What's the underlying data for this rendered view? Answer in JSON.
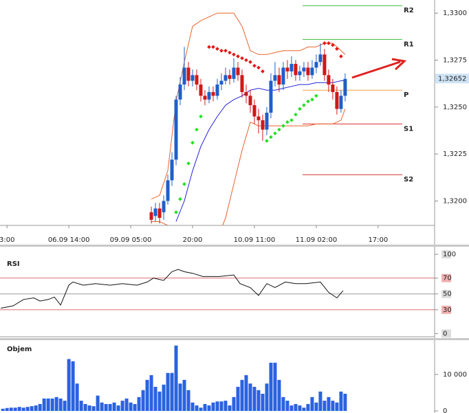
{
  "chart_data": [
    {
      "type": "candlestick",
      "x": [
        35,
        36,
        37,
        38,
        39,
        40,
        41,
        42,
        43,
        44,
        45,
        46,
        47,
        48,
        49,
        50,
        51,
        52,
        53,
        54,
        55,
        56,
        57,
        58,
        59,
        60,
        61,
        62,
        63,
        64,
        65,
        66,
        67,
        68,
        69,
        70,
        71,
        72,
        73,
        74,
        75,
        76,
        77,
        78,
        79,
        80,
        81,
        82
      ],
      "open": [
        1.3194,
        1.3192,
        1.3196,
        1.3194,
        1.32,
        1.3211,
        1.3222,
        1.3254,
        1.3262,
        1.3271,
        1.3264,
        1.3267,
        1.3262,
        1.3256,
        1.3254,
        1.3258,
        1.3256,
        1.3262,
        1.3264,
        1.3267,
        1.3265,
        1.3271,
        1.3267,
        1.3258,
        1.3256,
        1.3251,
        1.3245,
        1.3243,
        1.3238,
        1.3247,
        1.3264,
        1.3267,
        1.3262,
        1.3271,
        1.3269,
        1.3273,
        1.3267,
        1.3269,
        1.3271,
        1.3267,
        1.3271,
        1.3274,
        1.3278,
        1.3267,
        1.3262,
        1.3258,
        1.3249,
        1.3256
      ],
      "high": [
        1.3197,
        1.3199,
        1.3199,
        1.3203,
        1.3214,
        1.3226,
        1.3256,
        1.3266,
        1.3282,
        1.3274,
        1.327,
        1.327,
        1.3265,
        1.3259,
        1.3261,
        1.3261,
        1.3265,
        1.3268,
        1.3271,
        1.327,
        1.3276,
        1.3274,
        1.327,
        1.3262,
        1.3259,
        1.3254,
        1.3249,
        1.3246,
        1.325,
        1.3268,
        1.3274,
        1.3271,
        1.3274,
        1.3275,
        1.3277,
        1.3275,
        1.3272,
        1.3274,
        1.3274,
        1.3275,
        1.3278,
        1.3284,
        1.3281,
        1.327,
        1.3265,
        1.3261,
        1.3259,
        1.3268
      ],
      "low": [
        1.3188,
        1.3189,
        1.3188,
        1.319,
        1.3198,
        1.3208,
        1.3219,
        1.3251,
        1.3259,
        1.3261,
        1.3261,
        1.3259,
        1.3253,
        1.3251,
        1.3252,
        1.3253,
        1.3254,
        1.3259,
        1.3262,
        1.3262,
        1.3263,
        1.3264,
        1.3255,
        1.3252,
        1.3247,
        1.3241,
        1.3236,
        1.3232,
        1.3235,
        1.3244,
        1.3261,
        1.3258,
        1.3259,
        1.3265,
        1.3266,
        1.3264,
        1.3264,
        1.3266,
        1.3264,
        1.3265,
        1.3268,
        1.3272,
        1.3264,
        1.3258,
        1.3254,
        1.3246,
        1.3247,
        1.3253
      ],
      "close": [
        1.319,
        1.3196,
        1.3191,
        1.32,
        1.3211,
        1.3222,
        1.3254,
        1.3262,
        1.3271,
        1.3264,
        1.3267,
        1.3262,
        1.3256,
        1.3254,
        1.3258,
        1.3256,
        1.3262,
        1.3264,
        1.3267,
        1.3265,
        1.3271,
        1.3267,
        1.3258,
        1.3256,
        1.3251,
        1.3245,
        1.3243,
        1.3238,
        1.3247,
        1.3264,
        1.3267,
        1.3262,
        1.3271,
        1.3269,
        1.3273,
        1.3267,
        1.3269,
        1.3271,
        1.3267,
        1.3271,
        1.3274,
        1.3278,
        1.3267,
        1.3262,
        1.3258,
        1.3249,
        1.3256,
        1.3265
      ],
      "up_color": "#1f5fc8",
      "down_color": "#d01818",
      "xlim": [
        -1.7,
        103.7
      ],
      "ylim": [
        1.3187,
        1.3307
      ],
      "xticks": [
        {
          "value": 0,
          "label": "3:00"
        },
        {
          "value": 15,
          "label": "06.09 14:00"
        },
        {
          "value": 30,
          "label": "09.09 05:00"
        },
        {
          "value": 45,
          "label": "20:00"
        },
        {
          "value": 60,
          "label": "10.09 11:00"
        },
        {
          "value": 75,
          "label": "11.09 02:00"
        },
        {
          "value": 90,
          "label": "17:00"
        }
      ],
      "yticks": [
        {
          "value": 1.32,
          "label": "1,3200"
        },
        {
          "value": 1.3225,
          "label": "1,3225"
        },
        {
          "value": 1.325,
          "label": "1,3250"
        },
        {
          "value": 1.3275,
          "label": "1,3275"
        },
        {
          "value": 1.33,
          "label": "1,3300"
        }
      ],
      "bands": {
        "color": "#e8622a",
        "x": [
          35,
          37,
          39,
          41,
          43,
          45,
          47,
          49,
          51,
          53,
          55,
          57,
          59,
          61,
          63,
          65,
          67,
          69,
          71,
          73,
          75,
          77,
          79,
          81,
          82
        ],
        "upper": [
          1.3201,
          1.3203,
          1.3216,
          1.3253,
          1.3274,
          1.3293,
          1.3296,
          1.3298,
          1.33,
          1.33,
          1.33,
          1.3293,
          1.328,
          1.3278,
          1.3278,
          1.3279,
          1.328,
          1.328,
          1.328,
          1.3282,
          1.3282,
          1.3284,
          1.3284,
          1.328,
          1.3278
        ],
        "lower": [
          1.3189,
          1.3189,
          1.3187,
          1.3183,
          1.3181,
          1.318,
          1.3178,
          1.3176,
          1.318,
          1.3191,
          1.3209,
          1.3227,
          1.3242,
          1.324,
          1.324,
          1.324,
          1.324,
          1.324,
          1.324,
          1.324,
          1.3241,
          1.3241,
          1.3241,
          1.3243,
          1.3249
        ]
      },
      "ma": {
        "color": "#2222d8",
        "x": [
          41,
          43,
          45,
          47,
          49,
          51,
          53,
          55,
          57,
          59,
          61,
          63,
          65,
          67,
          69,
          71,
          73,
          75,
          77,
          79,
          81,
          82
        ],
        "values": [
          1.3189,
          1.32,
          1.3216,
          1.3229,
          1.3238,
          1.3245,
          1.3251,
          1.3254,
          1.3256,
          1.3259,
          1.326,
          1.3259,
          1.3259,
          1.326,
          1.3261,
          1.3262,
          1.3262,
          1.3263,
          1.3263,
          1.3263,
          1.3264,
          1.3264
        ]
      },
      "sar": [
        {
          "color": "#22e022",
          "x": [
            41,
            42,
            43,
            44,
            45,
            46,
            47
          ],
          "values": [
            1.3194,
            1.3201,
            1.3209,
            1.322,
            1.3231,
            1.3238,
            1.3245
          ]
        },
        {
          "color": "#e01818",
          "x": [
            49,
            50,
            51,
            52,
            53,
            54,
            55,
            56,
            57,
            58,
            59,
            60,
            61,
            62
          ],
          "values": [
            1.3282,
            1.3282,
            1.3281,
            1.328,
            1.328,
            1.3279,
            1.3278,
            1.3277,
            1.3276,
            1.3275,
            1.3274,
            1.3272,
            1.3271,
            1.3269
          ]
        },
        {
          "color": "#22e022",
          "x": [
            63,
            64,
            65,
            66,
            67,
            68,
            69,
            70,
            71,
            72,
            73,
            74,
            75
          ],
          "values": [
            1.3232,
            1.3234,
            1.3236,
            1.3238,
            1.324,
            1.3242,
            1.3243,
            1.3246,
            1.3249,
            1.3251,
            1.3253,
            1.3254,
            1.3256
          ]
        },
        {
          "color": "#e01818",
          "x": [
            77,
            78,
            79,
            80,
            81
          ],
          "values": [
            1.3284,
            1.3284,
            1.3283,
            1.3281,
            1.3277
          ]
        }
      ],
      "levels": [
        {
          "name": "R2",
          "value": 1.3304,
          "color": "#3cb83c"
        },
        {
          "name": "R1",
          "value": 1.3286,
          "color": "#3cb83c"
        },
        {
          "name": "P",
          "value": 1.3259,
          "color": "#f0a040"
        },
        {
          "name": "S1",
          "value": 1.3241,
          "color": "#d83030"
        },
        {
          "name": "S2",
          "value": 1.3214,
          "color": "#d83030"
        }
      ],
      "last_price": {
        "value": 1.32652,
        "label": "1,32652"
      }
    },
    {
      "type": "line",
      "title": "RSI",
      "color": "#111",
      "x": [
        -1.5,
        1.5,
        4,
        6.5,
        8,
        10,
        11.5,
        13,
        15,
        16,
        18.5,
        21.5,
        25,
        28,
        31.5,
        34,
        35.5,
        38,
        40,
        41.5,
        43,
        45,
        47.5,
        51.5,
        55,
        56.5,
        59,
        61,
        63,
        65,
        67.5,
        70,
        72.5,
        76,
        78,
        80,
        81.5
      ],
      "values": [
        32,
        35,
        43,
        45,
        41,
        43,
        46,
        36,
        61,
        65,
        61,
        63,
        61,
        63,
        61,
        65,
        70,
        67,
        78,
        81,
        78,
        76,
        72,
        72,
        74,
        63,
        58,
        48,
        63,
        58,
        65,
        63,
        63,
        65,
        52,
        45,
        54
      ],
      "xlim": [
        -1.7,
        103.7
      ],
      "ylim": [
        -4,
        107
      ],
      "yticks": [
        0,
        30,
        50,
        70,
        100
      ],
      "reference_lines": [
        70,
        50,
        30
      ],
      "reference_colors": [
        "#e07070",
        "#999999",
        "#e07070"
      ]
    },
    {
      "type": "bar",
      "title": "Objem",
      "color": "#2a62e0",
      "x": [
        -1,
        0,
        1,
        2,
        3,
        4,
        5,
        6,
        7,
        8,
        9,
        10,
        11,
        12,
        13,
        14,
        15,
        16,
        17,
        18,
        19,
        20,
        21,
        22,
        23,
        24,
        25,
        26,
        27,
        28,
        29,
        30,
        31,
        32,
        33,
        34,
        35,
        36,
        37,
        38,
        39,
        40,
        41,
        42,
        43,
        44,
        45,
        46,
        47,
        48,
        49,
        50,
        51,
        52,
        53,
        54,
        55,
        56,
        57,
        58,
        59,
        60,
        61,
        62,
        63,
        64,
        65,
        66,
        67,
        68,
        69,
        70,
        71,
        72,
        73,
        74,
        75,
        76,
        77,
        78,
        79,
        80,
        81,
        82
      ],
      "values": [
        600,
        800,
        900,
        900,
        1100,
        900,
        1100,
        1300,
        1500,
        1900,
        3400,
        3400,
        3400,
        3800,
        3400,
        2800,
        14200,
        13600,
        7500,
        2800,
        1900,
        1500,
        1300,
        4200,
        2300,
        1900,
        1900,
        2300,
        1500,
        2800,
        3400,
        2300,
        1900,
        3800,
        5700,
        8500,
        9800,
        6600,
        5300,
        7200,
        10400,
        10400,
        17900,
        7500,
        8500,
        5700,
        2300,
        1500,
        900,
        1900,
        1500,
        2300,
        2600,
        2600,
        2800,
        1500,
        3800,
        6600,
        8500,
        9800,
        7500,
        6600,
        5700,
        4700,
        7500,
        13200,
        13200,
        8500,
        3800,
        2800,
        1500,
        1900,
        1500,
        900,
        1900,
        3800,
        2300,
        5300,
        2800,
        3800,
        2800,
        2300,
        5300,
        4700
      ],
      "xlim": [
        -1.7,
        103.7
      ],
      "ylim": [
        0,
        19000
      ],
      "yticks": [
        0,
        {
          "value": 10000,
          "label": "10 000"
        }
      ]
    }
  ]
}
